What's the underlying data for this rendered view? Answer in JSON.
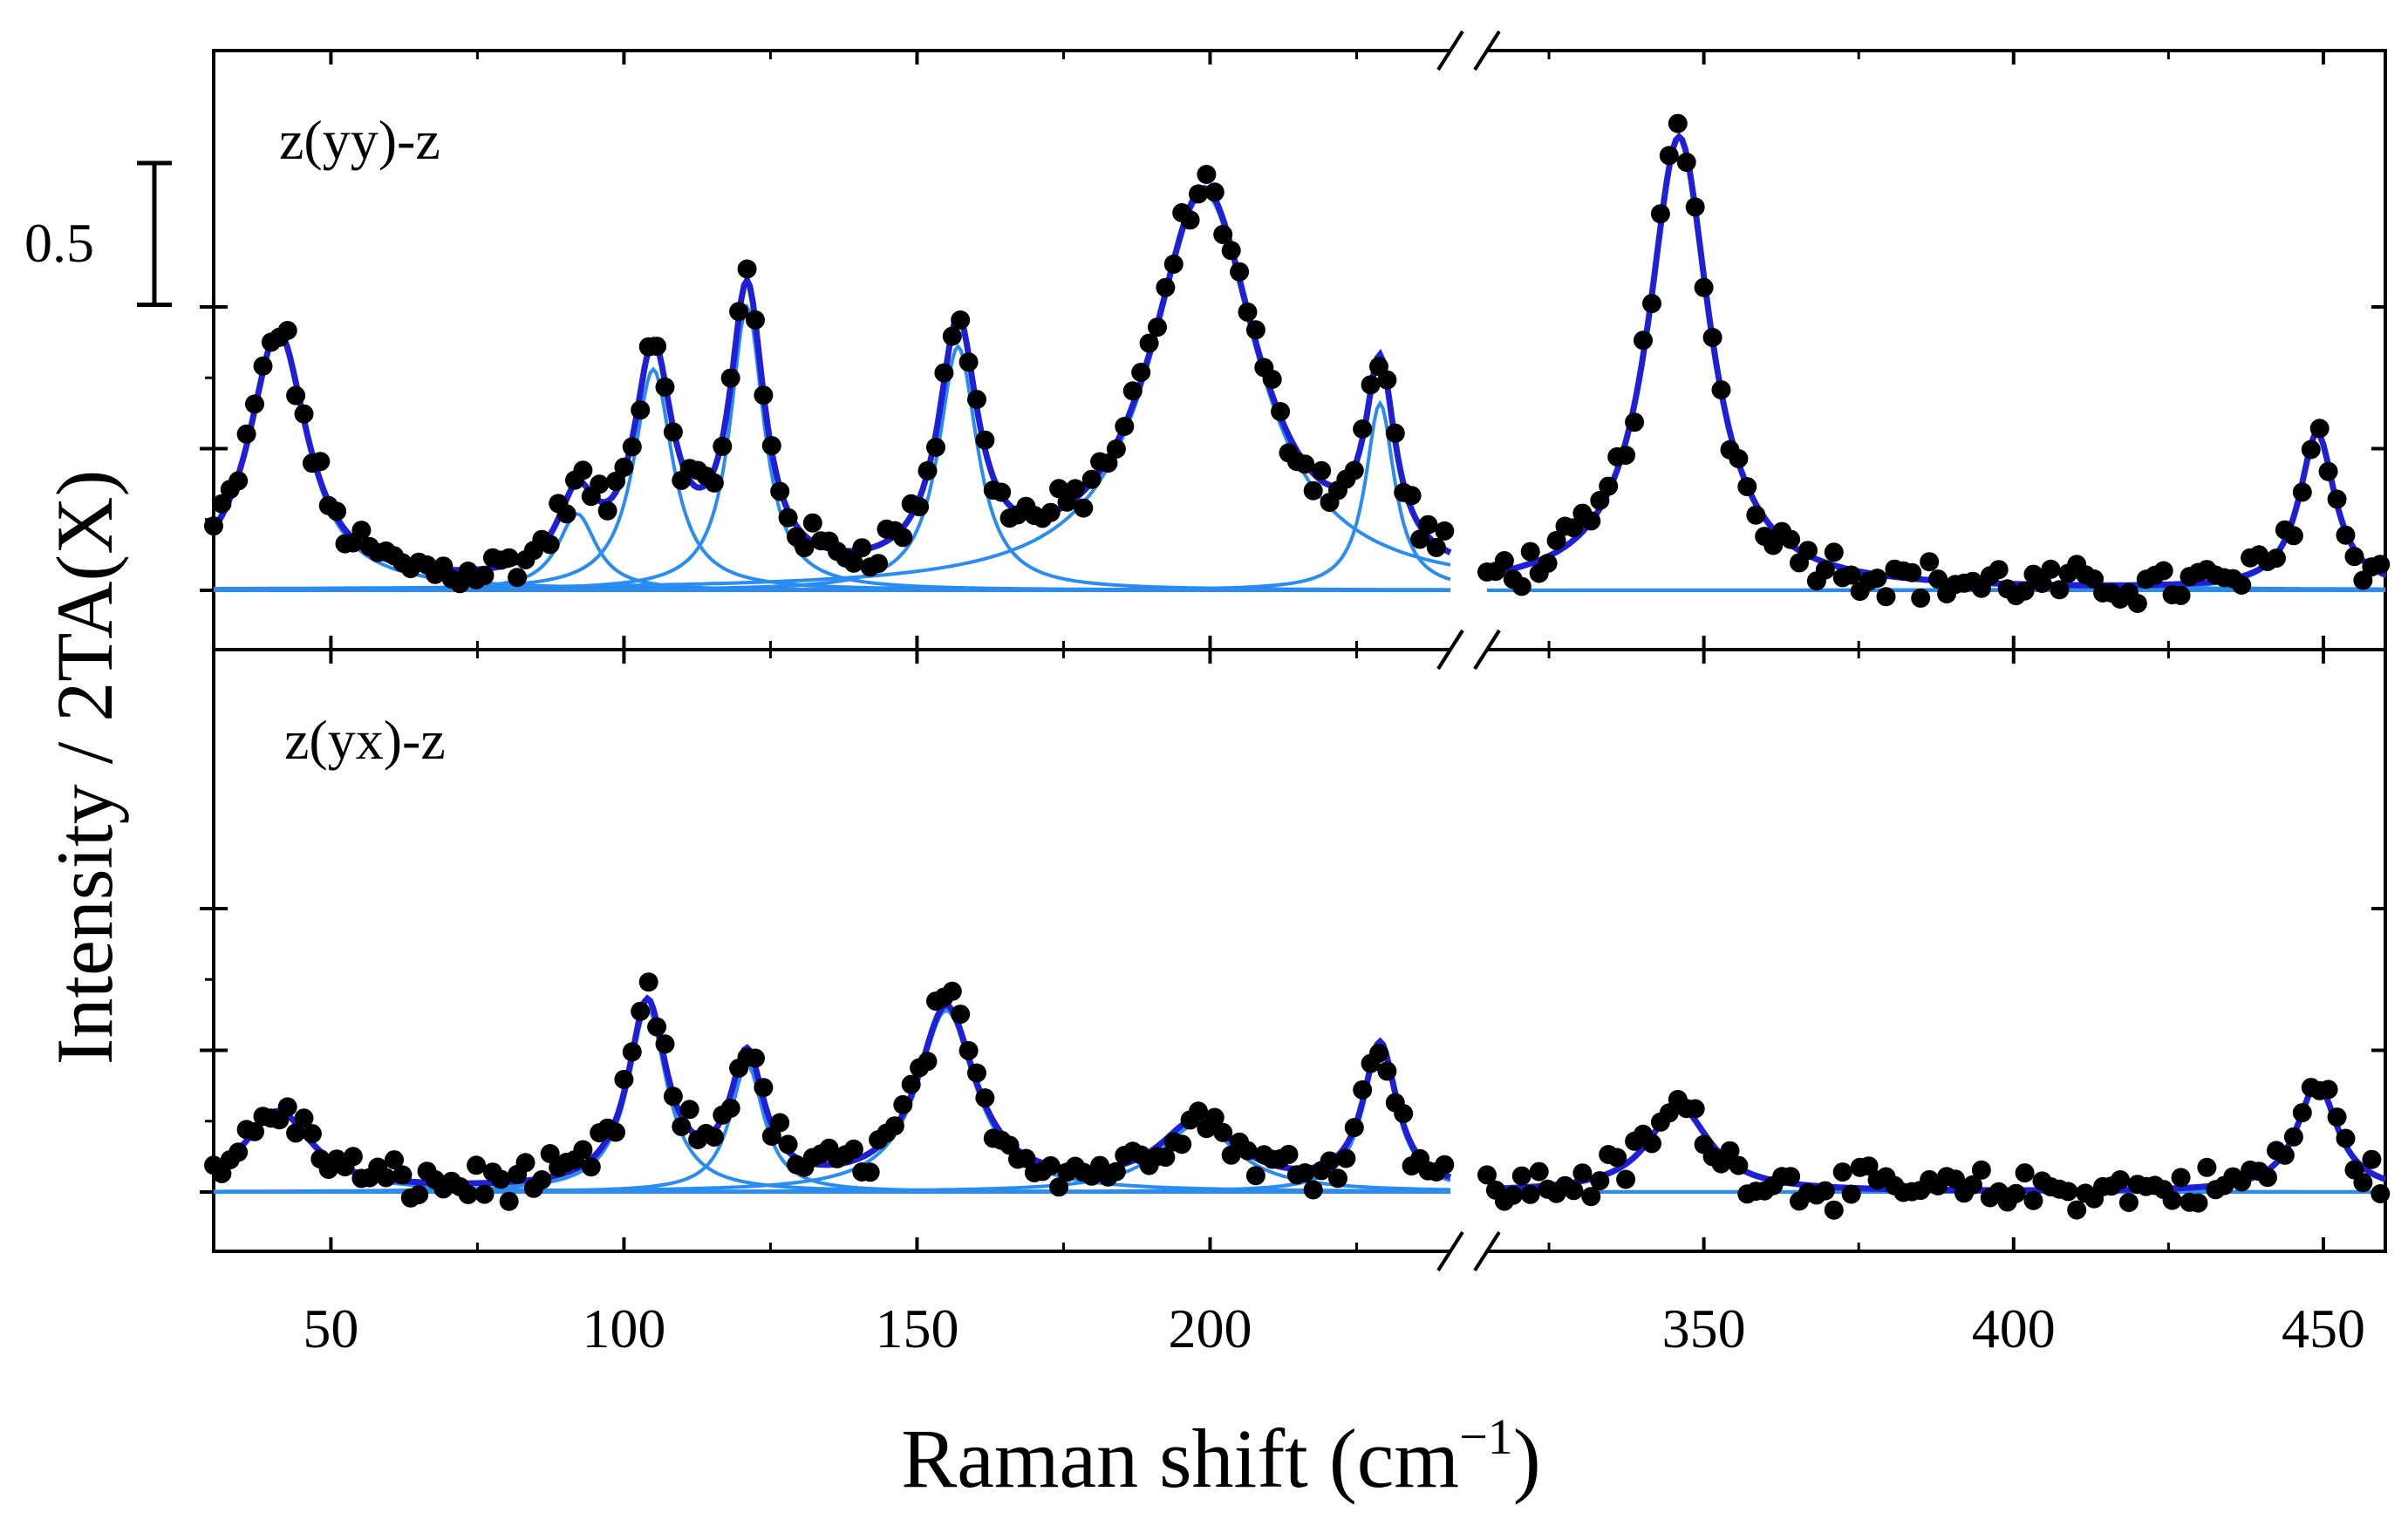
{
  "chart_data": {
    "type": "scatter",
    "xlabel": "Raman shift (cm",
    "xlabel_sup": "−1",
    "xlabel_close": ")",
    "ylabel": "Intensity / 2TA(X)",
    "x_segments": [
      {
        "range": [
          30,
          241
        ],
        "ticks": [
          50,
          100,
          150,
          200
        ],
        "tick_labels": [
          "50",
          "100",
          "150",
          "200"
        ]
      },
      {
        "range": [
          315,
          460
        ],
        "ticks": [
          350,
          400,
          450
        ],
        "tick_labels": [
          "350",
          "400",
          "450"
        ]
      }
    ],
    "axis_break": "//",
    "scale_bar": {
      "label": "0.5",
      "value": 0.5
    },
    "ylim": [
      -0.12,
      1.28
    ],
    "colors": {
      "data_points": "#000000",
      "total_fit": "#1f1fd6",
      "components": "#2a8cf0",
      "baseline": "#2a8cf0"
    },
    "panels": [
      {
        "label": "z(yy)-z",
        "peaks": [
          {
            "center": 41,
            "amplitude": 0.9,
            "width": 6
          },
          {
            "center": 92,
            "amplitude": 0.27,
            "width": 4
          },
          {
            "center": 105,
            "amplitude": 0.78,
            "width": 4
          },
          {
            "center": 121,
            "amplitude": 1.0,
            "width": 3.5
          },
          {
            "center": 157,
            "amplitude": 0.86,
            "width": 4
          },
          {
            "center": 199,
            "amplitude": 1.4,
            "width": 11
          },
          {
            "center": 229,
            "amplitude": 0.66,
            "width": 3
          },
          {
            "center": 346,
            "amplitude": 1.6,
            "width": 6
          },
          {
            "center": 449,
            "amplitude": 0.55,
            "width": 3.5
          }
        ]
      },
      {
        "label": "z(yx)-z",
        "peaks": [
          {
            "center": 41,
            "amplitude": 0.28,
            "width": 7
          },
          {
            "center": 104,
            "amplitude": 0.65,
            "width": 4
          },
          {
            "center": 121,
            "amplitude": 0.45,
            "width": 3.5
          },
          {
            "center": 155,
            "amplitude": 0.64,
            "width": 6
          },
          {
            "center": 198,
            "amplitude": 0.24,
            "width": 8
          },
          {
            "center": 229,
            "amplitude": 0.51,
            "width": 3.5
          },
          {
            "center": 346,
            "amplitude": 0.3,
            "width": 6
          },
          {
            "center": 449,
            "amplitude": 0.38,
            "width": 4
          }
        ]
      }
    ]
  }
}
